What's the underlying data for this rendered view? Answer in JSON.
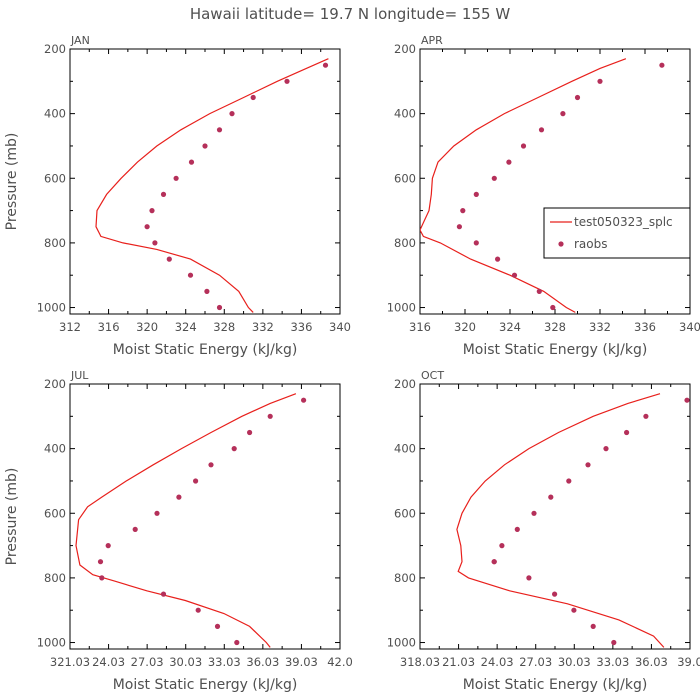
{
  "title": "Hawaii  latitude= 19.7 N longitude= 155 W",
  "colors": {
    "model": "#e8201c",
    "obs": "#b5305a",
    "text": "#505050"
  },
  "legend": {
    "model_label": "test050323_splc",
    "obs_label": "raobs"
  },
  "chart_data": [
    {
      "type": "line",
      "title": "JAN",
      "xlabel": "Moist Static Energy (kJ/kg)",
      "ylabel": "Pressure (mb)",
      "xlim": [
        312,
        340
      ],
      "ylim": [
        1020,
        200
      ],
      "x_ticks": [
        312,
        316,
        320,
        324,
        328,
        332,
        336,
        340
      ],
      "x_tick_labels": [
        "312",
        "316",
        "320",
        "324",
        "328",
        "332",
        "336",
        "340"
      ],
      "y_ticks": [
        200,
        400,
        600,
        800,
        1000
      ],
      "y_tick_labels": [
        "200",
        "400",
        "600",
        "800",
        "1000"
      ],
      "series": [
        {
          "name": "test050323_splc",
          "kind": "line",
          "x": [
            338.8,
            336.5,
            333.5,
            330.0,
            326.5,
            323.5,
            321.0,
            319.0,
            317.3,
            315.8,
            314.8,
            314.7,
            315.2,
            317.5,
            321.0,
            324.5,
            327.5,
            329.5,
            330.5,
            331.0
          ],
          "p": [
            230,
            260,
            300,
            350,
            400,
            450,
            500,
            550,
            600,
            650,
            700,
            750,
            780,
            800,
            820,
            850,
            900,
            950,
            1000,
            1015
          ]
        },
        {
          "name": "raobs",
          "kind": "scatter",
          "x": [
            338.5,
            334.5,
            331.0,
            328.8,
            327.5,
            326.0,
            324.6,
            323.0,
            321.7,
            320.5,
            320.0,
            320.8,
            322.3,
            324.5,
            326.2,
            327.5
          ],
          "p": [
            250,
            300,
            350,
            400,
            450,
            500,
            550,
            600,
            650,
            700,
            750,
            800,
            850,
            900,
            950,
            1000
          ]
        }
      ]
    },
    {
      "type": "line",
      "title": "APR",
      "xlabel": "Moist Static Energy (kJ/kg)",
      "ylabel": "Pressure (mb)",
      "xlim": [
        316,
        340
      ],
      "ylim": [
        1020,
        200
      ],
      "x_ticks": [
        316,
        320,
        324,
        328,
        332,
        336,
        340
      ],
      "x_tick_labels": [
        "316",
        "320",
        "324",
        "328",
        "332",
        "336",
        "340"
      ],
      "y_ticks": [
        200,
        400,
        600,
        800,
        1000
      ],
      "y_tick_labels": [
        "200",
        "400",
        "600",
        "800",
        "1000"
      ],
      "series": [
        {
          "name": "test050323_splc",
          "kind": "line",
          "x": [
            334.3,
            332.0,
            329.5,
            326.5,
            323.5,
            321.0,
            319.0,
            317.6,
            317.1,
            317.0,
            316.8,
            316.4,
            316.0,
            316.3,
            317.8,
            320.5,
            324.0,
            327.0,
            329.0,
            329.8
          ],
          "p": [
            230,
            260,
            300,
            350,
            400,
            450,
            500,
            550,
            600,
            650,
            700,
            730,
            760,
            780,
            800,
            850,
            900,
            950,
            1000,
            1015
          ]
        },
        {
          "name": "raobs",
          "kind": "scatter",
          "x": [
            337.5,
            332.0,
            330.0,
            328.7,
            326.8,
            325.2,
            323.9,
            322.6,
            321.0,
            319.8,
            319.5,
            321.0,
            322.9,
            324.4,
            326.6,
            327.8
          ],
          "p": [
            250,
            300,
            350,
            400,
            450,
            500,
            550,
            600,
            650,
            700,
            750,
            800,
            850,
            900,
            950,
            1000
          ]
        }
      ]
    },
    {
      "type": "line",
      "title": "JUL",
      "xlabel": "Moist Static Energy (kJ/kg)",
      "ylabel": "Pressure (mb)",
      "xlim": [
        321.03,
        342.03
      ],
      "ylim": [
        1020,
        200
      ],
      "x_ticks": [
        321.03,
        324.03,
        327.03,
        330.03,
        333.03,
        336.03,
        339.03,
        342.03
      ],
      "x_tick_labels": [
        "321.03",
        "24.03",
        "27.03",
        "30.03",
        "33.03",
        "36.03",
        "39.03",
        "42.0"
      ],
      "y_ticks": [
        200,
        400,
        600,
        800,
        1000
      ],
      "y_tick_labels": [
        "200",
        "400",
        "600",
        "800",
        "1000"
      ],
      "series": [
        {
          "name": "test050323_splc",
          "kind": "line",
          "x": [
            338.6,
            336.6,
            334.4,
            332.0,
            329.7,
            327.5,
            325.4,
            323.5,
            322.4,
            321.7,
            321.5,
            321.8,
            322.8,
            324.5,
            327.0,
            330.0,
            333.0,
            335.0,
            336.3,
            336.6
          ],
          "p": [
            230,
            260,
            300,
            350,
            400,
            450,
            500,
            550,
            580,
            620,
            700,
            760,
            790,
            810,
            840,
            870,
            910,
            950,
            1000,
            1015
          ]
        },
        {
          "name": "raobs",
          "kind": "scatter",
          "x": [
            339.2,
            336.6,
            335.0,
            333.8,
            332.0,
            330.8,
            329.5,
            327.8,
            326.1,
            324.0,
            323.4,
            323.5,
            328.3,
            331.0,
            332.5,
            334.0
          ],
          "p": [
            250,
            300,
            350,
            400,
            450,
            500,
            550,
            600,
            650,
            700,
            750,
            800,
            850,
            900,
            950,
            1000
          ]
        }
      ]
    },
    {
      "type": "line",
      "title": "OCT",
      "xlabel": "Moist Static Energy (kJ/kg)",
      "ylabel": "Pressure (mb)",
      "xlim": [
        318.03,
        339.03
      ],
      "ylim": [
        1020,
        200
      ],
      "x_ticks": [
        318.03,
        321.03,
        324.03,
        327.03,
        330.03,
        333.03,
        336.03,
        339.03
      ],
      "x_tick_labels": [
        "318.03",
        "21.03",
        "24.03",
        "27.03",
        "30.03",
        "33.03",
        "36.03",
        "39.0"
      ],
      "y_ticks": [
        200,
        400,
        600,
        800,
        1000
      ],
      "y_tick_labels": [
        "200",
        "400",
        "600",
        "800",
        "1000"
      ],
      "series": [
        {
          "name": "test050323_splc",
          "kind": "line",
          "x": [
            336.7,
            334.2,
            331.5,
            328.8,
            326.5,
            324.6,
            323.1,
            322.0,
            321.3,
            320.9,
            321.2,
            321.3,
            321.0,
            321.8,
            325.0,
            329.5,
            333.5,
            336.2,
            337.0
          ],
          "p": [
            230,
            260,
            300,
            350,
            400,
            450,
            500,
            550,
            600,
            650,
            700,
            750,
            780,
            800,
            840,
            880,
            930,
            980,
            1015
          ]
        },
        {
          "name": "raobs",
          "kind": "scatter",
          "x": [
            338.8,
            335.6,
            334.1,
            332.5,
            331.1,
            329.6,
            328.2,
            326.9,
            325.6,
            324.4,
            323.8,
            323.8,
            326.5,
            328.5,
            330.0,
            331.5,
            333.1
          ],
          "p": [
            250,
            300,
            350,
            400,
            450,
            500,
            550,
            600,
            650,
            700,
            750,
            750,
            800,
            850,
            900,
            950,
            1000
          ]
        }
      ]
    }
  ]
}
